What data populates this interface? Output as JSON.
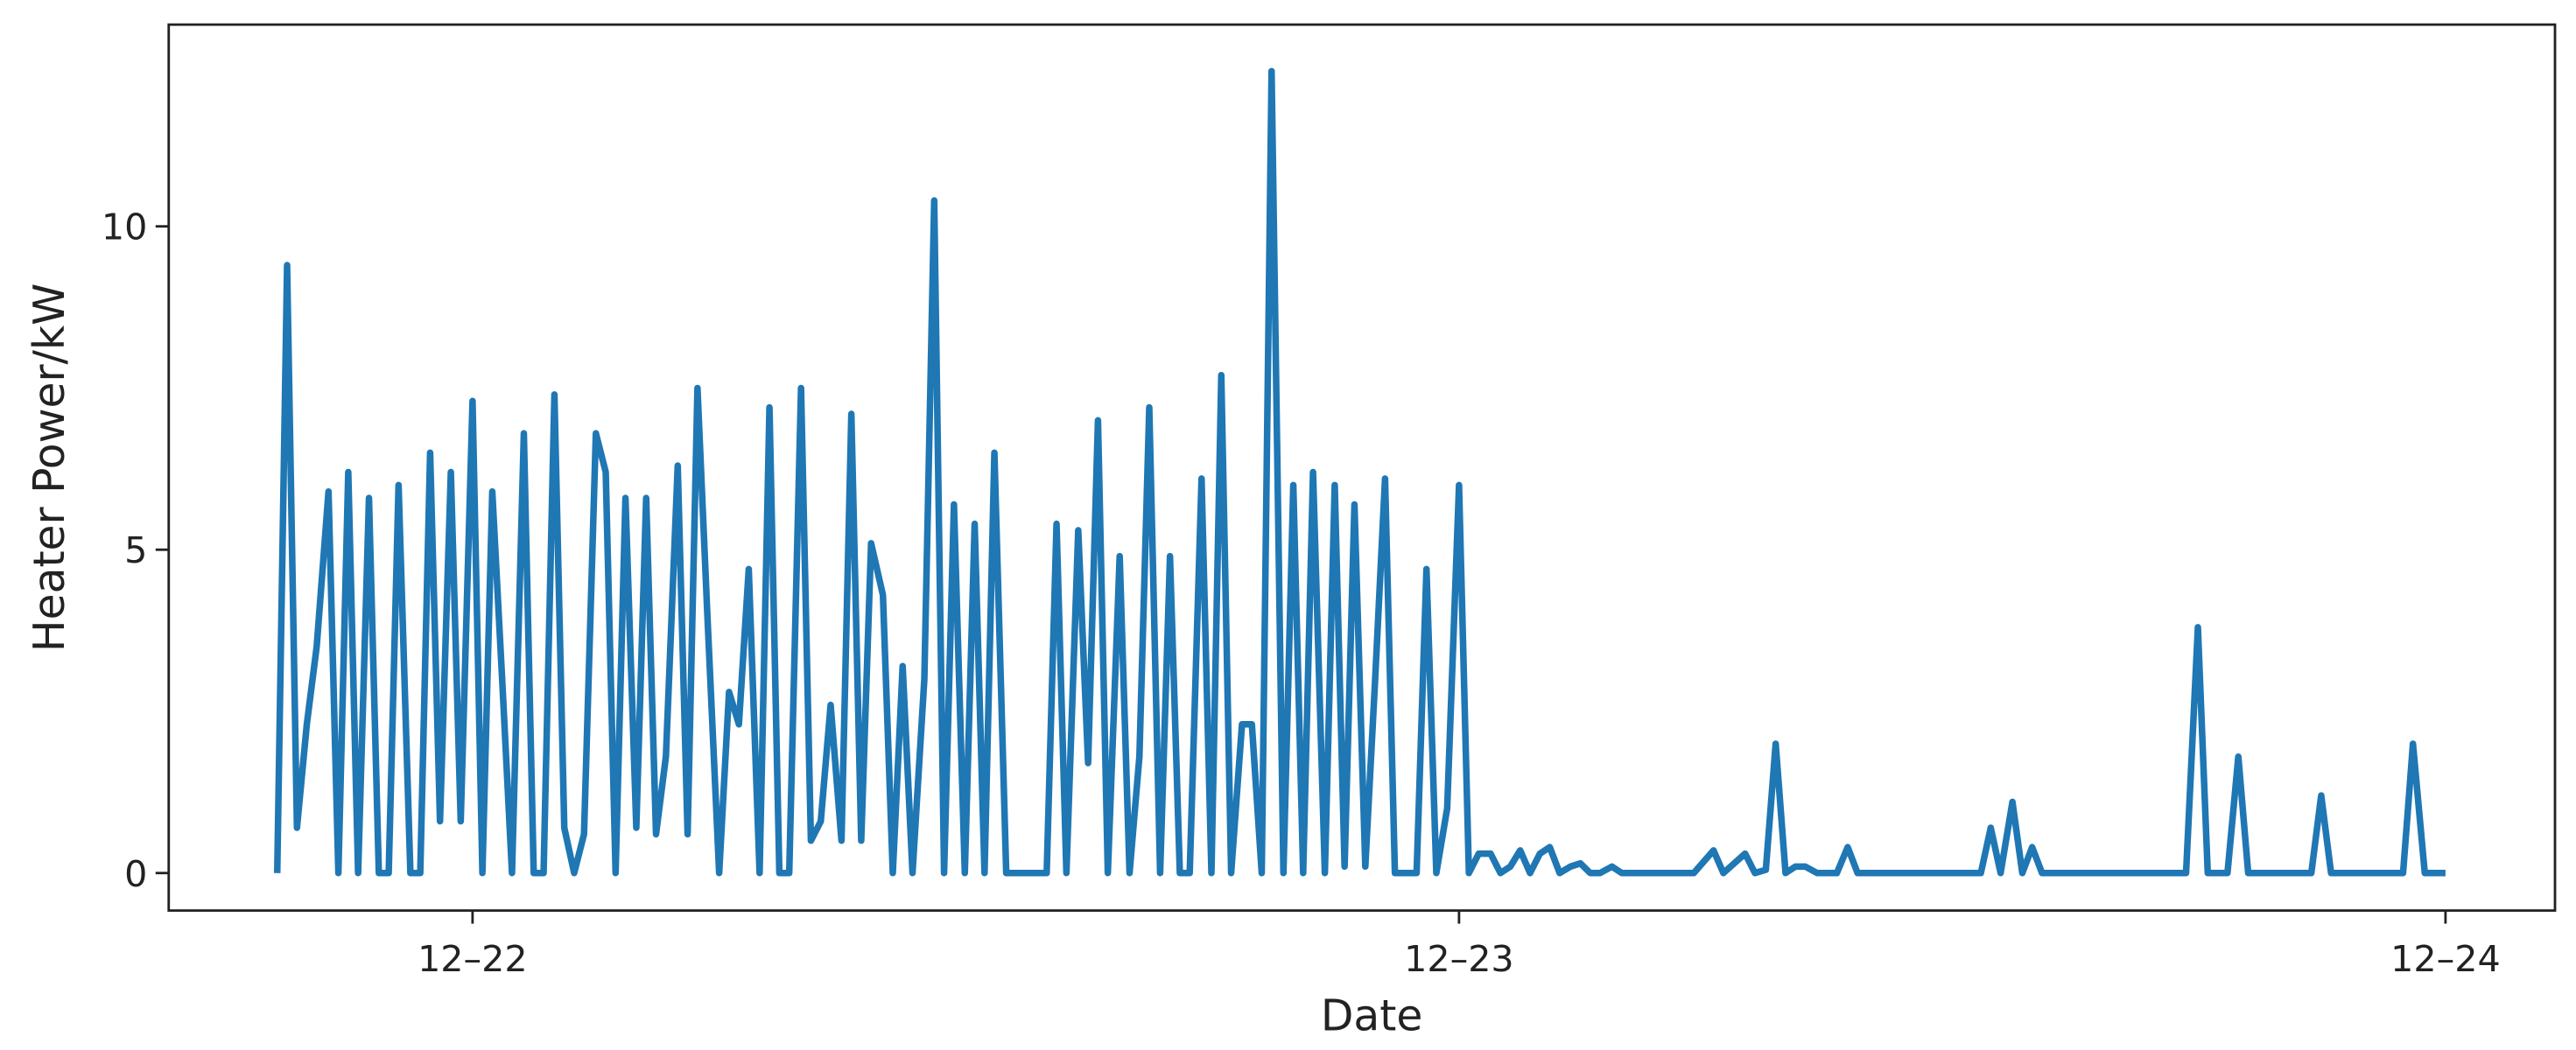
{
  "chart_data": {
    "type": "line",
    "x_label": "Date",
    "y_label": "Heater Power/kW",
    "xlim": [
      21.692,
      24.111
    ],
    "ylim": [
      -0.58,
      13.12
    ],
    "xticks": [
      {
        "value": 22,
        "label": "12–22"
      },
      {
        "value": 23,
        "label": "12–23"
      },
      {
        "value": 24,
        "label": "12–24"
      }
    ],
    "yticks": [
      0,
      5,
      10
    ],
    "series": [
      {
        "color": "#1f77b4",
        "x": [
          21.802,
          21.812,
          21.822,
          21.832,
          21.842,
          21.854,
          21.864,
          21.874,
          21.884,
          21.895,
          21.905,
          21.915,
          21.925,
          21.937,
          21.947,
          21.957,
          21.967,
          21.978,
          21.988,
          22.0,
          22.01,
          22.02,
          22.03,
          22.04,
          22.052,
          22.062,
          22.072,
          22.083,
          22.093,
          22.103,
          22.113,
          22.125,
          22.135,
          22.145,
          22.155,
          22.166,
          22.176,
          22.186,
          22.196,
          22.208,
          22.218,
          22.228,
          22.238,
          22.25,
          22.26,
          22.27,
          22.28,
          22.291,
          22.301,
          22.311,
          22.321,
          22.333,
          22.343,
          22.353,
          22.363,
          22.374,
          22.384,
          22.394,
          22.404,
          22.416,
          22.426,
          22.436,
          22.446,
          22.458,
          22.468,
          22.478,
          22.488,
          22.499,
          22.509,
          22.519,
          22.529,
          22.541,
          22.582,
          22.592,
          22.602,
          22.614,
          22.624,
          22.634,
          22.644,
          22.656,
          22.666,
          22.676,
          22.686,
          22.697,
          22.707,
          22.717,
          22.727,
          22.739,
          22.749,
          22.759,
          22.769,
          22.78,
          22.79,
          22.8,
          22.81,
          22.822,
          22.832,
          22.842,
          22.852,
          22.864,
          22.874,
          22.884,
          22.894,
          22.905,
          22.915,
          22.925,
          22.935,
          22.957,
          22.967,
          22.977,
          22.988,
          23.0,
          23.01,
          23.02,
          23.032,
          23.042,
          23.052,
          23.062,
          23.072,
          23.082,
          23.092,
          23.102,
          23.113,
          23.123,
          23.133,
          23.143,
          23.155,
          23.165,
          23.238,
          23.258,
          23.268,
          23.29,
          23.3,
          23.311,
          23.321,
          23.331,
          23.341,
          23.351,
          23.363,
          23.383,
          23.394,
          23.404,
          23.529,
          23.539,
          23.549,
          23.561,
          23.571,
          23.581,
          23.591,
          23.737,
          23.749,
          23.759,
          23.779,
          23.79,
          23.8,
          23.864,
          23.874,
          23.884,
          23.957,
          23.967,
          23.979,
          24.0
        ],
        "values": [
          0,
          9.4,
          0.7,
          2.3,
          3.5,
          5.9,
          0,
          6.2,
          0,
          5.8,
          0,
          0,
          6,
          0,
          0,
          6.5,
          0.8,
          6.2,
          0.8,
          7.3,
          0,
          5.9,
          3,
          0,
          6.8,
          0,
          0,
          7.4,
          0.7,
          0,
          0.6,
          6.8,
          6.2,
          0,
          5.8,
          0.7,
          5.8,
          0.6,
          1.8,
          6.3,
          0.6,
          7.5,
          4,
          0,
          2.8,
          2.3,
          4.7,
          0,
          7.2,
          0,
          0,
          7.5,
          0.5,
          0.8,
          2.6,
          0.5,
          7.1,
          0.5,
          5.1,
          4.3,
          0,
          3.2,
          0,
          3,
          10.4,
          0,
          5.7,
          0,
          5.4,
          0,
          6.5,
          0,
          0,
          5.4,
          0,
          5.3,
          1.7,
          7,
          0,
          4.9,
          0,
          1.8,
          7.2,
          0,
          4.9,
          0,
          0,
          6.1,
          0,
          7.7,
          0,
          2.3,
          2.3,
          0,
          12.4,
          0,
          6,
          0,
          6.2,
          0,
          6,
          0.1,
          5.7,
          0.1,
          3,
          6.1,
          0,
          0,
          4.7,
          0,
          1,
          6,
          0,
          0.3,
          0.3,
          0,
          0.1,
          0.35,
          0,
          0.3,
          0.4,
          0,
          0.1,
          0.15,
          0,
          0,
          0.1,
          0,
          0,
          0.35,
          0,
          0.3,
          0,
          0.05,
          2,
          0,
          0.1,
          0.1,
          0,
          0,
          0.4,
          0,
          0,
          0.7,
          0,
          1.1,
          0,
          0.4,
          0,
          0,
          3.8,
          0,
          0,
          1.8,
          0,
          0,
          1.2,
          0,
          0,
          2,
          0,
          0
        ]
      }
    ]
  }
}
